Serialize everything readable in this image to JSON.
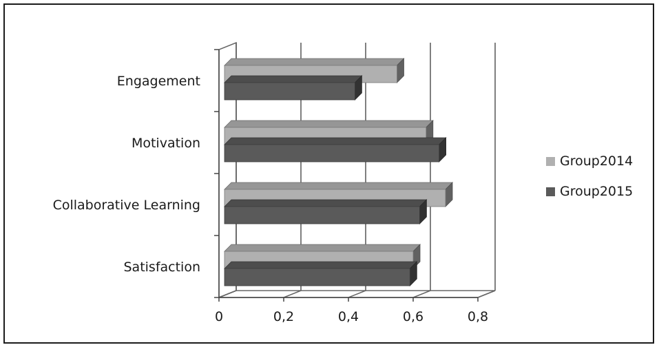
{
  "chart_data": {
    "type": "bar",
    "orientation": "horizontal",
    "style": "3d",
    "categories": [
      "Engagement",
      "Motivation",
      "Collaborative Learning",
      "Satisfaction"
    ],
    "series": [
      {
        "name": "Group2014",
        "values": [
          0.55,
          0.64,
          0.7,
          0.6
        ],
        "color": "#b0b0b0"
      },
      {
        "name": "Group2015",
        "values": [
          0.42,
          0.68,
          0.62,
          0.59
        ],
        "color": "#5a5a5a"
      }
    ],
    "xlim": [
      0,
      0.8
    ],
    "xticks": [
      "0",
      "0,2",
      "0,4",
      "0,6",
      "0,8"
    ],
    "grid": true,
    "legend_position": "right"
  }
}
